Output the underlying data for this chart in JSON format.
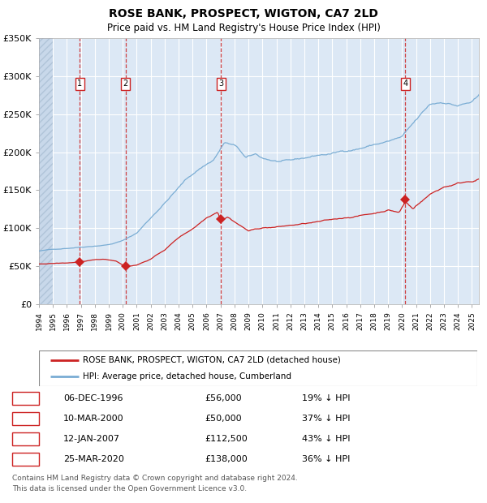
{
  "title": "ROSE BANK, PROSPECT, WIGTON, CA7 2LD",
  "subtitle": "Price paid vs. HM Land Registry's House Price Index (HPI)",
  "legend_label_red": "ROSE BANK, PROSPECT, WIGTON, CA7 2LD (detached house)",
  "legend_label_blue": "HPI: Average price, detached house, Cumberland",
  "footer_line1": "Contains HM Land Registry data © Crown copyright and database right 2024.",
  "footer_line2": "This data is licensed under the Open Government Licence v3.0.",
  "transactions": [
    {
      "label": "1",
      "date": "06-DEC-1996",
      "price": "£56,000",
      "pct": "19% ↓ HPI",
      "x_year": 1996.93,
      "y_val": 56000
    },
    {
      "label": "2",
      "date": "10-MAR-2000",
      "price": "£50,000",
      "pct": "37% ↓ HPI",
      "x_year": 2000.19,
      "y_val": 50000
    },
    {
      "label": "3",
      "date": "12-JAN-2007",
      "price": "£112,500",
      "pct": "43% ↓ HPI",
      "x_year": 2007.03,
      "y_val": 112500
    },
    {
      "label": "4",
      "date": "25-MAR-2020",
      "price": "£138,000",
      "pct": "36% ↓ HPI",
      "x_year": 2020.23,
      "y_val": 138000
    }
  ],
  "ylim": [
    0,
    350000
  ],
  "xlim_start": 1994.0,
  "xlim_end": 2025.5,
  "yticks": [
    0,
    50000,
    100000,
    150000,
    200000,
    250000,
    300000,
    350000
  ],
  "ytick_labels": [
    "£0",
    "£50K",
    "£100K",
    "£150K",
    "£200K",
    "£250K",
    "£300K",
    "£350K"
  ],
  "plot_bg": "#dce8f5",
  "hatch_bg": "#c8d8ea",
  "red_color": "#cc2222",
  "blue_color": "#7aadd4",
  "grid_color": "#ffffff",
  "vline_color": "#cc2222",
  "label_box_color": "#cc2222",
  "hpi_key_points": {
    "1994.0": 70000,
    "1995.0": 72000,
    "1997.0": 76000,
    "1999.0": 80000,
    "2000.0": 85000,
    "2001.0": 95000,
    "2002.0": 115000,
    "2003.5": 145000,
    "2004.5": 165000,
    "2005.5": 180000,
    "2006.5": 192000,
    "2007.3": 215000,
    "2008.2": 208000,
    "2008.8": 193000,
    "2009.5": 197000,
    "2010.0": 192000,
    "2011.0": 188000,
    "2012.0": 187000,
    "2013.0": 190000,
    "2014.0": 194000,
    "2015.0": 196000,
    "2016.0": 200000,
    "2017.0": 204000,
    "2018.0": 209000,
    "2019.0": 213000,
    "2020.0": 218000,
    "2021.0": 238000,
    "2022.0": 258000,
    "2023.0": 262000,
    "2024.0": 258000,
    "2025.0": 262000,
    "2025.5": 268000
  },
  "red_key_points": {
    "1994.0": 53000,
    "1995.0": 54000,
    "1996.0": 54500,
    "1996.93": 56000,
    "1997.5": 57000,
    "1998.5": 59000,
    "1999.5": 57000,
    "2000.19": 50000,
    "2001.0": 52000,
    "2002.0": 60000,
    "2003.0": 72000,
    "2004.0": 88000,
    "2005.0": 100000,
    "2006.0": 115000,
    "2006.8": 124000,
    "2007.03": 112500,
    "2007.5": 118000,
    "2008.0": 112000,
    "2009.0": 100000,
    "2010.0": 104000,
    "2011.0": 105000,
    "2012.0": 107000,
    "2013.0": 109000,
    "2014.0": 111000,
    "2015.0": 113000,
    "2016.0": 116000,
    "2017.0": 119000,
    "2018.0": 122000,
    "2019.0": 127000,
    "2019.8": 124000,
    "2020.23": 138000,
    "2020.8": 128000,
    "2021.0": 133000,
    "2022.0": 148000,
    "2023.0": 158000,
    "2024.0": 163000,
    "2025.0": 167000,
    "2025.5": 170000
  }
}
